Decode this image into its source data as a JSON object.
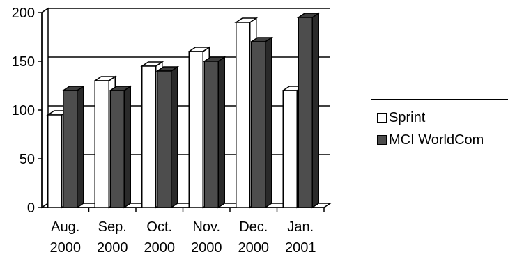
{
  "chart_data": {
    "type": "bar",
    "variant": "3d-clustered-column",
    "categories": [
      [
        "Aug.",
        "2000"
      ],
      [
        "Sep.",
        "2000"
      ],
      [
        "Oct.",
        "2000"
      ],
      [
        "Nov.",
        "2000"
      ],
      [
        "Dec.",
        "2000"
      ],
      [
        "Jan.",
        "2001"
      ]
    ],
    "series": [
      {
        "name": "Sprint",
        "values": [
          95,
          130,
          145,
          160,
          190,
          120
        ],
        "color": "#ffffff"
      },
      {
        "name": "MCI WorldCom",
        "values": [
          120,
          120,
          140,
          150,
          170,
          195
        ],
        "color": "#4d4d4d"
      }
    ],
    "yticks": [
      "0",
      "50",
      "100",
      "150",
      "200"
    ],
    "ylim": [
      0,
      200
    ],
    "grid": true,
    "legend": "right",
    "title": "",
    "xlabel": "",
    "ylabel": ""
  }
}
